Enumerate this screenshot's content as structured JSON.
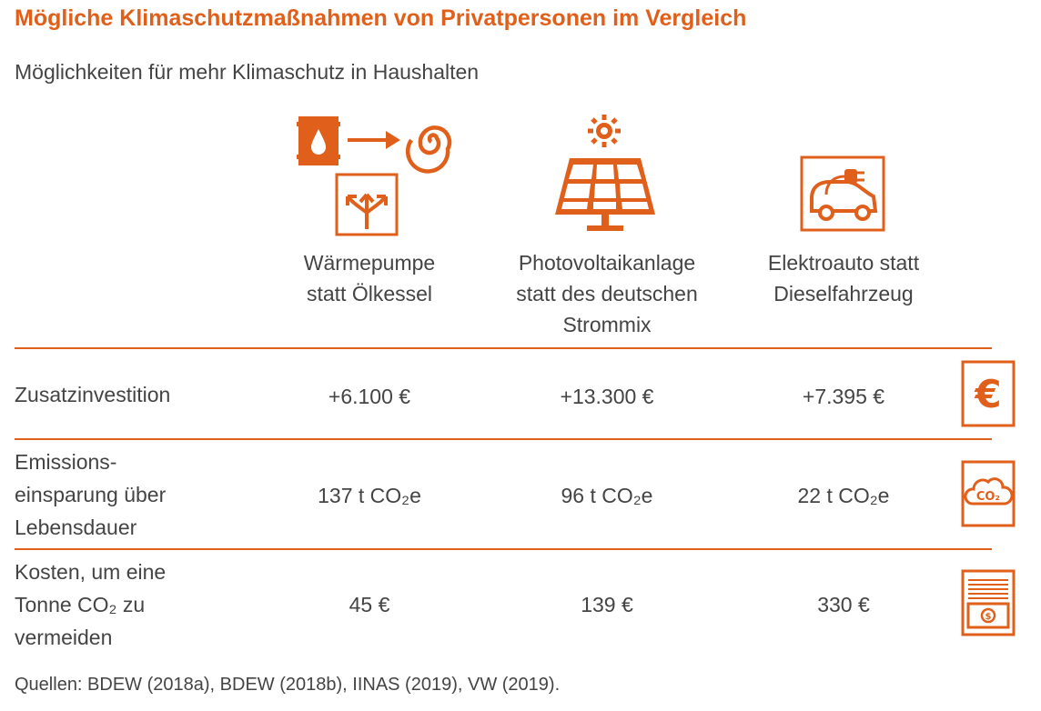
{
  "title": "Mögliche Klimaschutzmaßnahmen von Privatpersonen im Vergleich",
  "subtitle": "Möglichkeiten für mehr Klimaschutz in Haushalten",
  "accent_color": "#e0601b",
  "columns": [
    {
      "label_lines": [
        "Wärmepumpe",
        "statt Ölkessel"
      ],
      "icon": "heat-pump-icon"
    },
    {
      "label_lines": [
        "Photovoltaikanlage",
        "statt des deutschen",
        "Strommix"
      ],
      "icon": "solar-panel-icon"
    },
    {
      "label_lines": [
        "Elektroauto statt",
        "Dieselfahrzeug"
      ],
      "icon": "electric-car-icon"
    }
  ],
  "rows": [
    {
      "label_lines": [
        "Zusatzinvestition"
      ],
      "values": [
        "+6.100 €",
        "+13.300 €",
        "+7.395 €"
      ],
      "icon": "euro-icon"
    },
    {
      "label_lines": [
        "Emissions-",
        "einsparung über",
        "Lebensdauer"
      ],
      "values": [
        "137 t CO₂e",
        "96 t CO₂e",
        "22 t CO₂e"
      ],
      "icon": "co2-cloud-icon"
    },
    {
      "label_lines": [
        "Kosten, um eine",
        "Tonne CO₂ zu",
        "vermeiden"
      ],
      "values": [
        "45 €",
        "139 €",
        "330 €"
      ],
      "icon": "money-stack-icon"
    }
  ],
  "source": "Quellen: BDEW (2018a), BDEW (2018b), IINAS (2019), VW (2019).",
  "chart_data": {
    "type": "table",
    "title": "Mögliche Klimaschutzmaßnahmen von Privatpersonen im Vergleich",
    "subtitle": "Möglichkeiten für mehr Klimaschutz in Haushalten",
    "columns": [
      "Wärmepumpe statt Ölkessel",
      "Photovoltaikanlage statt des deutschen Strommix",
      "Elektroauto statt Dieselfahrzeug"
    ],
    "rows": [
      {
        "name": "Zusatzinvestition",
        "unit": "€",
        "values": [
          6100,
          13300,
          7395
        ]
      },
      {
        "name": "Emissionseinsparung über Lebensdauer",
        "unit": "t CO₂e",
        "values": [
          137,
          96,
          22
        ]
      },
      {
        "name": "Kosten, um eine Tonne CO₂ zu vermeiden",
        "unit": "€",
        "values": [
          45,
          139,
          330
        ]
      }
    ]
  }
}
